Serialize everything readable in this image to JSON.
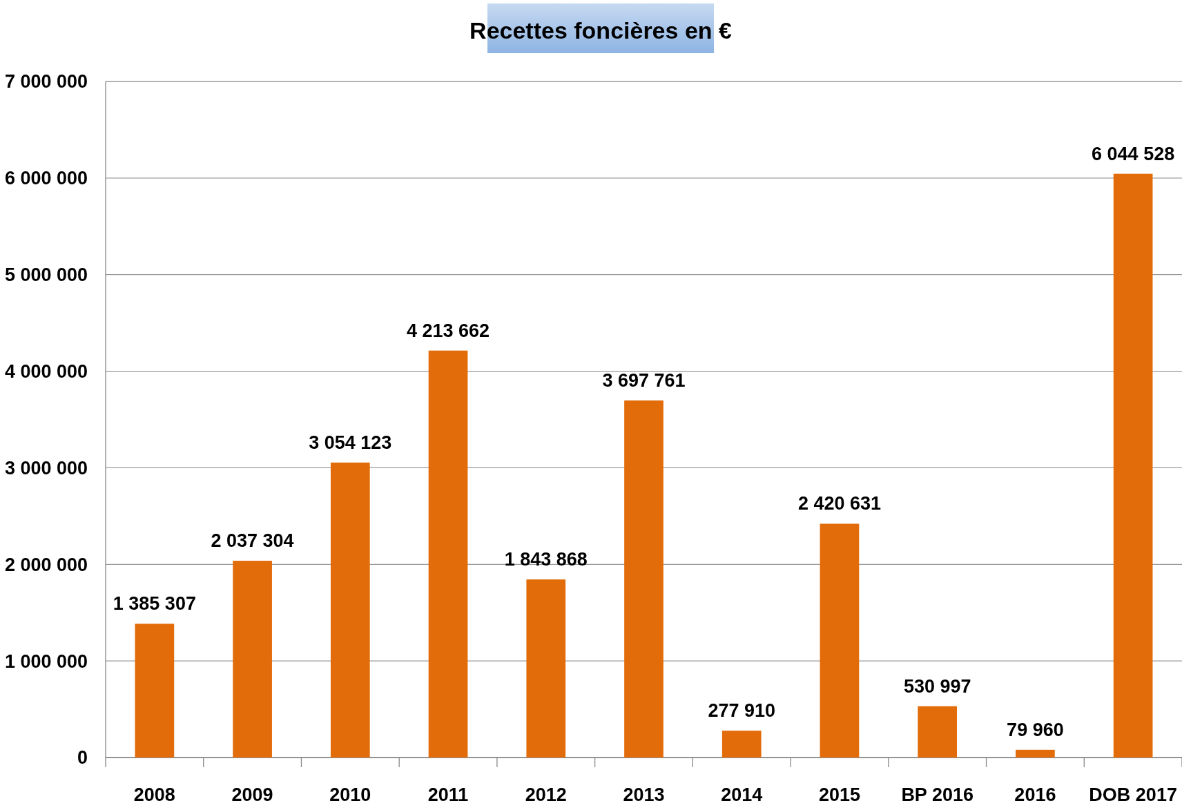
{
  "chart_data": {
    "type": "bar",
    "title": "Recettes foncières en €",
    "categories": [
      "2008",
      "2009",
      "2010",
      "2011",
      "2012",
      "2013",
      "2014",
      "2015",
      "BP 2016",
      "2016",
      "DOB 2017"
    ],
    "values": [
      1385307,
      2037304,
      3054123,
      4213662,
      1843868,
      3697761,
      277910,
      2420631,
      530997,
      79960,
      6044528
    ],
    "color": "#e36c0a",
    "ylim": [
      0,
      7000000
    ],
    "yticks": [
      0,
      1000000,
      2000000,
      3000000,
      4000000,
      5000000,
      6000000,
      7000000
    ],
    "grid": "y",
    "data_labels": true
  }
}
